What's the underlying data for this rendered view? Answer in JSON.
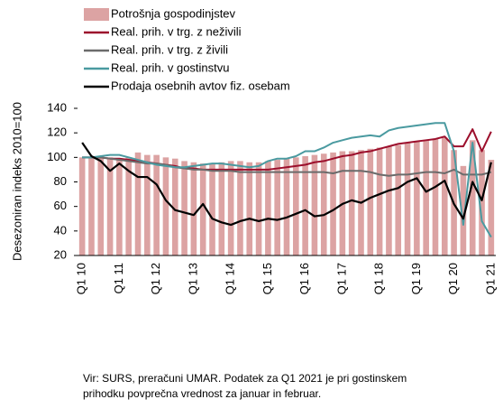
{
  "chart_data": {
    "type": "combo",
    "y_label": "Desezoniran indeks 2010=100",
    "categories": [
      "Q1 10",
      null,
      null,
      null,
      "Q1 11",
      null,
      null,
      null,
      "Q1 12",
      null,
      null,
      null,
      "Q1 13",
      null,
      null,
      null,
      "Q1 14",
      null,
      null,
      null,
      "Q1 15",
      null,
      null,
      null,
      "Q1 16",
      null,
      null,
      null,
      "Q1 17",
      null,
      null,
      null,
      "Q1 18",
      null,
      null,
      null,
      "Q1 19",
      null,
      null,
      null,
      "Q1 20",
      null,
      null,
      null,
      "Q1 21"
    ],
    "series": [
      {
        "name": "Potrošnja gospodinjstev",
        "type": "bar",
        "color": "#dca3a3",
        "values": [
          100,
          100,
          100,
          100,
          99,
          100,
          104,
          102,
          102,
          100,
          99,
          97,
          96,
          95,
          95,
          96,
          97,
          97,
          96,
          96,
          97,
          98,
          99,
          100,
          101,
          102,
          103,
          104,
          105,
          105,
          106,
          107,
          108,
          109,
          110,
          112,
          113,
          114,
          115,
          116,
          106,
          93,
          114,
          106,
          98
        ]
      },
      {
        "name": "Real. prih. v trg. z neživili",
        "type": "line",
        "color": "#9c0f2c",
        "values": [
          100,
          100,
          100,
          99,
          99,
          98,
          97,
          96,
          95,
          94,
          93,
          91,
          91,
          90,
          90,
          90,
          90,
          90,
          90,
          90,
          90,
          91,
          92,
          93,
          94,
          96,
          97,
          99,
          101,
          102,
          104,
          105,
          107,
          109,
          111,
          112,
          113,
          114,
          115,
          117,
          109,
          109,
          123,
          105,
          121
        ]
      },
      {
        "name": "Real. prih. v trg. z živili",
        "type": "line",
        "color": "#6b6b6b",
        "values": [
          100,
          100,
          100,
          99,
          98,
          97,
          96,
          95,
          95,
          94,
          92,
          91,
          90,
          90,
          89,
          89,
          89,
          88,
          88,
          88,
          88,
          88,
          88,
          88,
          88,
          88,
          88,
          87,
          89,
          89,
          89,
          88,
          86,
          85,
          86,
          86,
          87,
          88,
          88,
          87,
          90,
          86,
          86,
          86,
          88
        ]
      },
      {
        "name": "Real. prih. v gostinstvu",
        "type": "line",
        "color": "#4a9aa0",
        "values": [
          100,
          100,
          101,
          102,
          102,
          100,
          98,
          96,
          94,
          93,
          92,
          92,
          93,
          94,
          95,
          95,
          94,
          93,
          92,
          93,
          97,
          99,
          99,
          101,
          105,
          105,
          108,
          112,
          114,
          116,
          117,
          118,
          117,
          122,
          124,
          125,
          126,
          127,
          128,
          128,
          105,
          45,
          112,
          48,
          35
        ]
      },
      {
        "name": "Prodaja osebnih avtov fiz. osebam",
        "type": "line",
        "color": "#000000",
        "values": [
          112,
          101,
          97,
          89,
          95,
          89,
          84,
          84,
          78,
          65,
          57,
          55,
          53,
          62,
          50,
          47,
          45,
          48,
          50,
          48,
          50,
          49,
          51,
          54,
          57,
          52,
          53,
          57,
          62,
          65,
          63,
          67,
          70,
          73,
          75,
          80,
          83,
          72,
          76,
          81,
          62,
          50,
          80,
          65,
          96
        ]
      }
    ],
    "ylim": [
      20,
      140
    ],
    "yticks": [
      20,
      40,
      60,
      80,
      100,
      120,
      140
    ],
    "grid": false,
    "legend": "top",
    "note_lines": [
      "Vir: SURS, preračuni UMAR. Podatek za Q1 2021 je pri gostinskem",
      "prihodku povprečna vrednost za januar in februar."
    ]
  }
}
